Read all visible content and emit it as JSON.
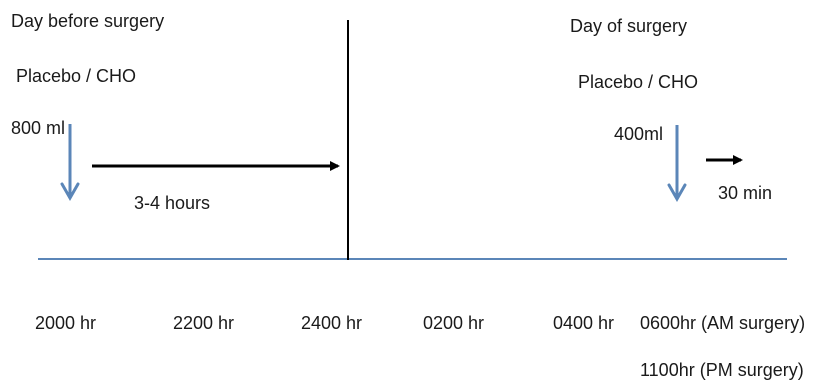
{
  "left_section": {
    "title": "Day before surgery",
    "drink": "Placebo / CHO",
    "volume": "800 ml",
    "duration": "3-4 hours"
  },
  "right_section": {
    "title": "Day of surgery",
    "drink": "Placebo / CHO",
    "volume": "400ml",
    "duration": "30 min"
  },
  "timeline": {
    "ticks": [
      "2000 hr",
      "2200 hr",
      "2400 hr",
      "0200 hr",
      "0400 hr",
      "0600hr (AM surgery)"
    ],
    "extra_tick": "1100hr (PM surgery)"
  },
  "colors": {
    "timeline_line": "#5b86b8",
    "dose_arrow": "#5b86b8",
    "duration_arrow": "#000000",
    "divider": "#000000",
    "text": "#1a1a1a"
  }
}
